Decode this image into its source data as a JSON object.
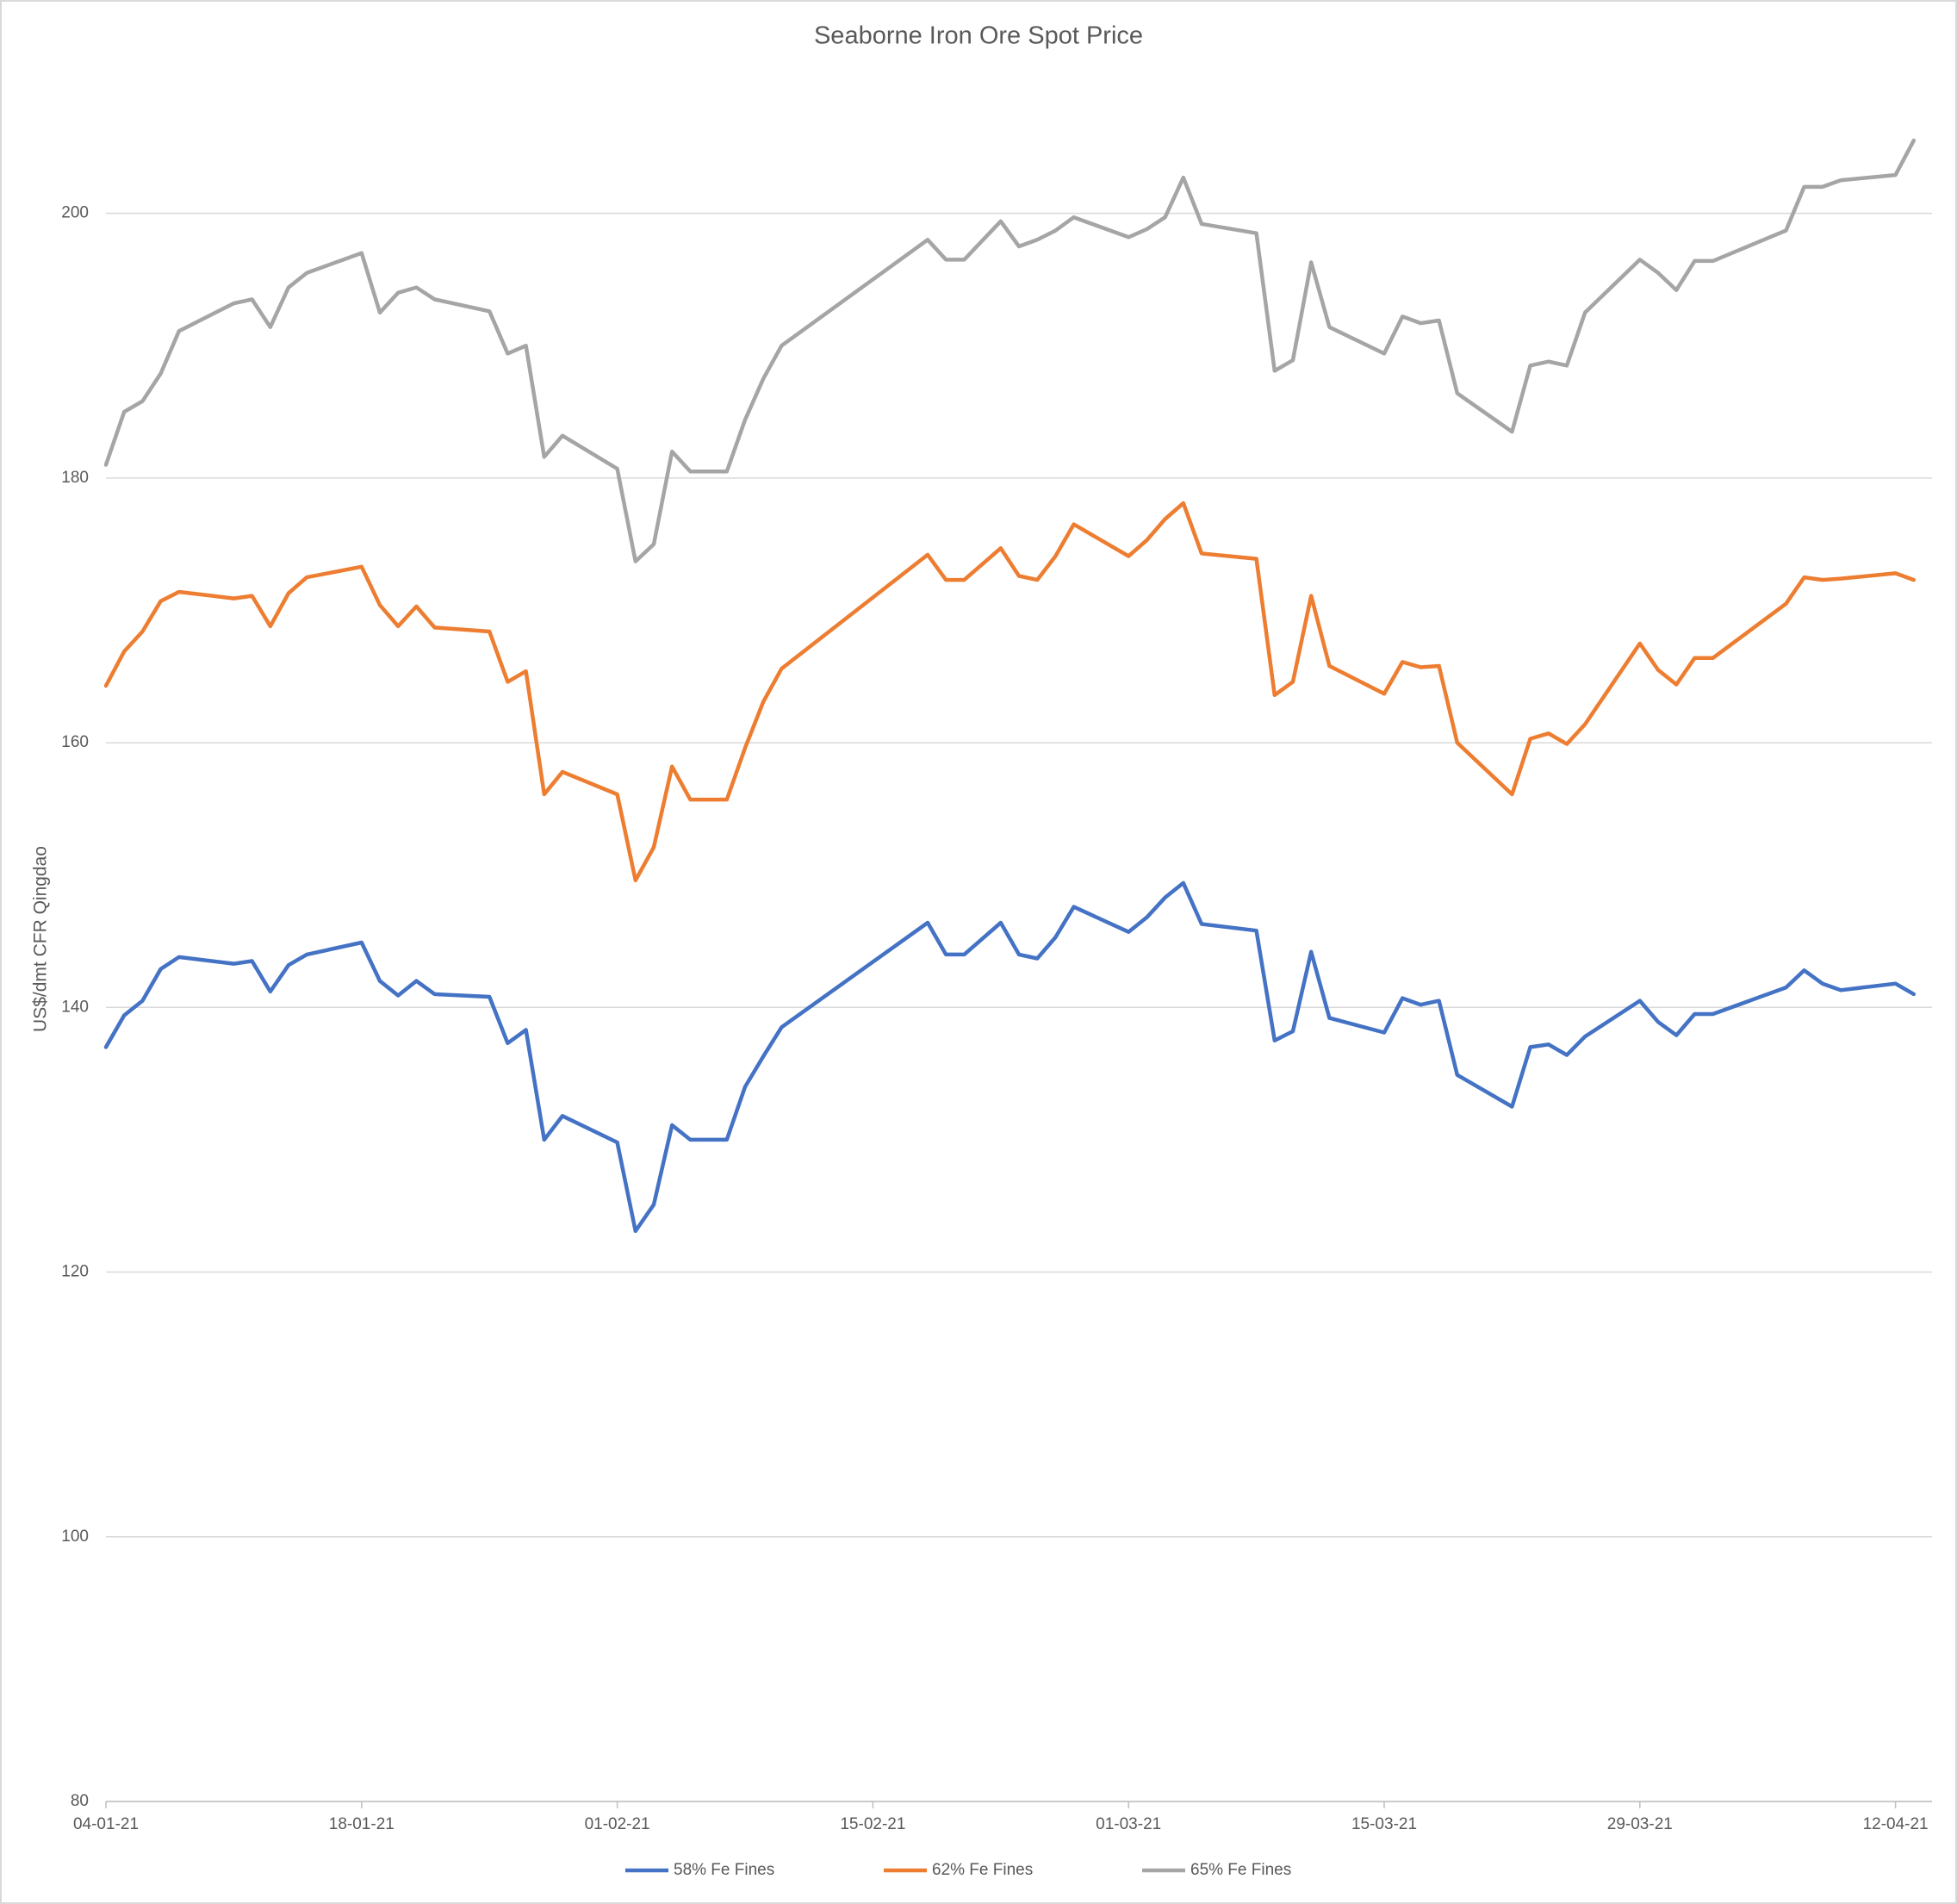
{
  "chart_data": {
    "type": "line",
    "title": "Seaborne Iron Ore Spot Price",
    "y_label": "US$/dmt CFR Qingdao",
    "x": [
      "2021-01-04",
      "2021-01-05",
      "2021-01-06",
      "2021-01-07",
      "2021-01-08",
      "2021-01-11",
      "2021-01-12",
      "2021-01-13",
      "2021-01-14",
      "2021-01-15",
      "2021-01-18",
      "2021-01-19",
      "2021-01-20",
      "2021-01-21",
      "2021-01-22",
      "2021-01-25",
      "2021-01-26",
      "2021-01-27",
      "2021-01-28",
      "2021-01-29",
      "2021-02-01",
      "2021-02-02",
      "2021-02-03",
      "2021-02-04",
      "2021-02-05",
      "2021-02-07",
      "2021-02-08",
      "2021-02-09",
      "2021-02-10",
      "2021-02-18",
      "2021-02-19",
      "2021-02-20",
      "2021-02-22",
      "2021-02-23",
      "2021-02-24",
      "2021-02-25",
      "2021-02-26",
      "2021-03-01",
      "2021-03-02",
      "2021-03-03",
      "2021-03-04",
      "2021-03-05",
      "2021-03-08",
      "2021-03-09",
      "2021-03-10",
      "2021-03-11",
      "2021-03-12",
      "2021-03-15",
      "2021-03-16",
      "2021-03-17",
      "2021-03-18",
      "2021-03-19",
      "2021-03-22",
      "2021-03-23",
      "2021-03-24",
      "2021-03-25",
      "2021-03-26",
      "2021-03-29",
      "2021-03-30",
      "2021-03-31",
      "2021-04-01",
      "2021-04-02",
      "2021-04-06",
      "2021-04-07",
      "2021-04-08",
      "2021-04-09",
      "2021-04-12",
      "2021-04-13"
    ],
    "series": [
      {
        "name": "58% Fe Fines",
        "color": "#4472c4",
        "values": [
          137.0,
          139.4,
          140.5,
          142.9,
          143.8,
          143.3,
          143.5,
          141.2,
          143.2,
          144.0,
          144.9,
          142.0,
          140.9,
          142.0,
          141.0,
          140.8,
          137.3,
          138.3,
          130.0,
          131.8,
          129.8,
          123.1,
          125.1,
          131.1,
          130.0,
          130.0,
          134.0,
          136.3,
          138.5,
          146.4,
          144.0,
          144.0,
          146.4,
          144.0,
          143.7,
          145.3,
          147.6,
          145.7,
          146.8,
          148.3,
          149.4,
          146.3,
          145.8,
          137.5,
          138.2,
          144.2,
          139.2,
          138.1,
          140.7,
          140.2,
          140.5,
          134.9,
          132.5,
          137.0,
          137.2,
          136.4,
          137.8,
          140.5,
          138.9,
          137.9,
          139.5,
          139.5,
          141.5,
          142.8,
          141.8,
          141.3,
          141.8,
          141.0
        ]
      },
      {
        "name": "62% Fe Fines",
        "color": "#ed7d31",
        "values": [
          164.3,
          166.9,
          168.4,
          170.7,
          171.4,
          170.9,
          171.1,
          168.8,
          171.3,
          172.5,
          173.3,
          170.4,
          168.8,
          170.3,
          168.7,
          168.4,
          164.6,
          165.4,
          156.1,
          157.8,
          156.1,
          149.6,
          152.1,
          158.2,
          155.7,
          155.7,
          159.6,
          163.1,
          165.6,
          174.2,
          172.3,
          172.3,
          174.7,
          172.6,
          172.3,
          174.1,
          176.5,
          174.1,
          175.3,
          176.9,
          178.1,
          174.3,
          173.9,
          163.6,
          164.6,
          171.1,
          165.8,
          163.7,
          166.1,
          165.7,
          165.8,
          160.0,
          156.1,
          160.3,
          160.7,
          159.9,
          161.4,
          167.5,
          165.5,
          164.4,
          166.4,
          166.4,
          170.5,
          172.5,
          172.3,
          172.4,
          172.8,
          172.3
        ]
      },
      {
        "name": "65% Fe Fines",
        "color": "#a5a5a5",
        "values": [
          181.0,
          185.0,
          185.8,
          187.9,
          191.1,
          193.2,
          193.5,
          191.4,
          194.4,
          195.5,
          197.0,
          192.5,
          194.0,
          194.4,
          193.5,
          192.6,
          189.4,
          190.0,
          181.6,
          183.2,
          180.7,
          173.7,
          175.0,
          182.0,
          180.5,
          180.5,
          184.4,
          187.5,
          190.0,
          198.0,
          196.5,
          196.5,
          199.4,
          197.5,
          198.0,
          198.7,
          199.7,
          198.2,
          198.8,
          199.7,
          202.7,
          199.2,
          198.5,
          188.1,
          188.9,
          196.3,
          191.4,
          189.4,
          192.2,
          191.7,
          191.9,
          186.4,
          183.5,
          188.5,
          188.8,
          188.5,
          192.5,
          196.5,
          195.5,
          194.2,
          196.4,
          196.4,
          198.7,
          202.0,
          202.0,
          202.5,
          202.9,
          205.5
        ]
      }
    ],
    "xlim": [
      "2021-01-04",
      "2021-04-14"
    ],
    "xticks": [
      {
        "value": "2021-01-04",
        "label": "04-01-21"
      },
      {
        "value": "2021-01-18",
        "label": "18-01-21"
      },
      {
        "value": "2021-02-01",
        "label": "01-02-21"
      },
      {
        "value": "2021-02-15",
        "label": "15-02-21"
      },
      {
        "value": "2021-03-01",
        "label": "01-03-21"
      },
      {
        "value": "2021-03-15",
        "label": "15-03-21"
      },
      {
        "value": "2021-03-29",
        "label": "29-03-21"
      },
      {
        "value": "2021-04-12",
        "label": "12-04-21"
      }
    ],
    "ylim": [
      80,
      210
    ],
    "yticks": [
      80,
      100,
      120,
      140,
      160,
      180,
      200
    ],
    "grid": true,
    "legend": "bottom"
  }
}
